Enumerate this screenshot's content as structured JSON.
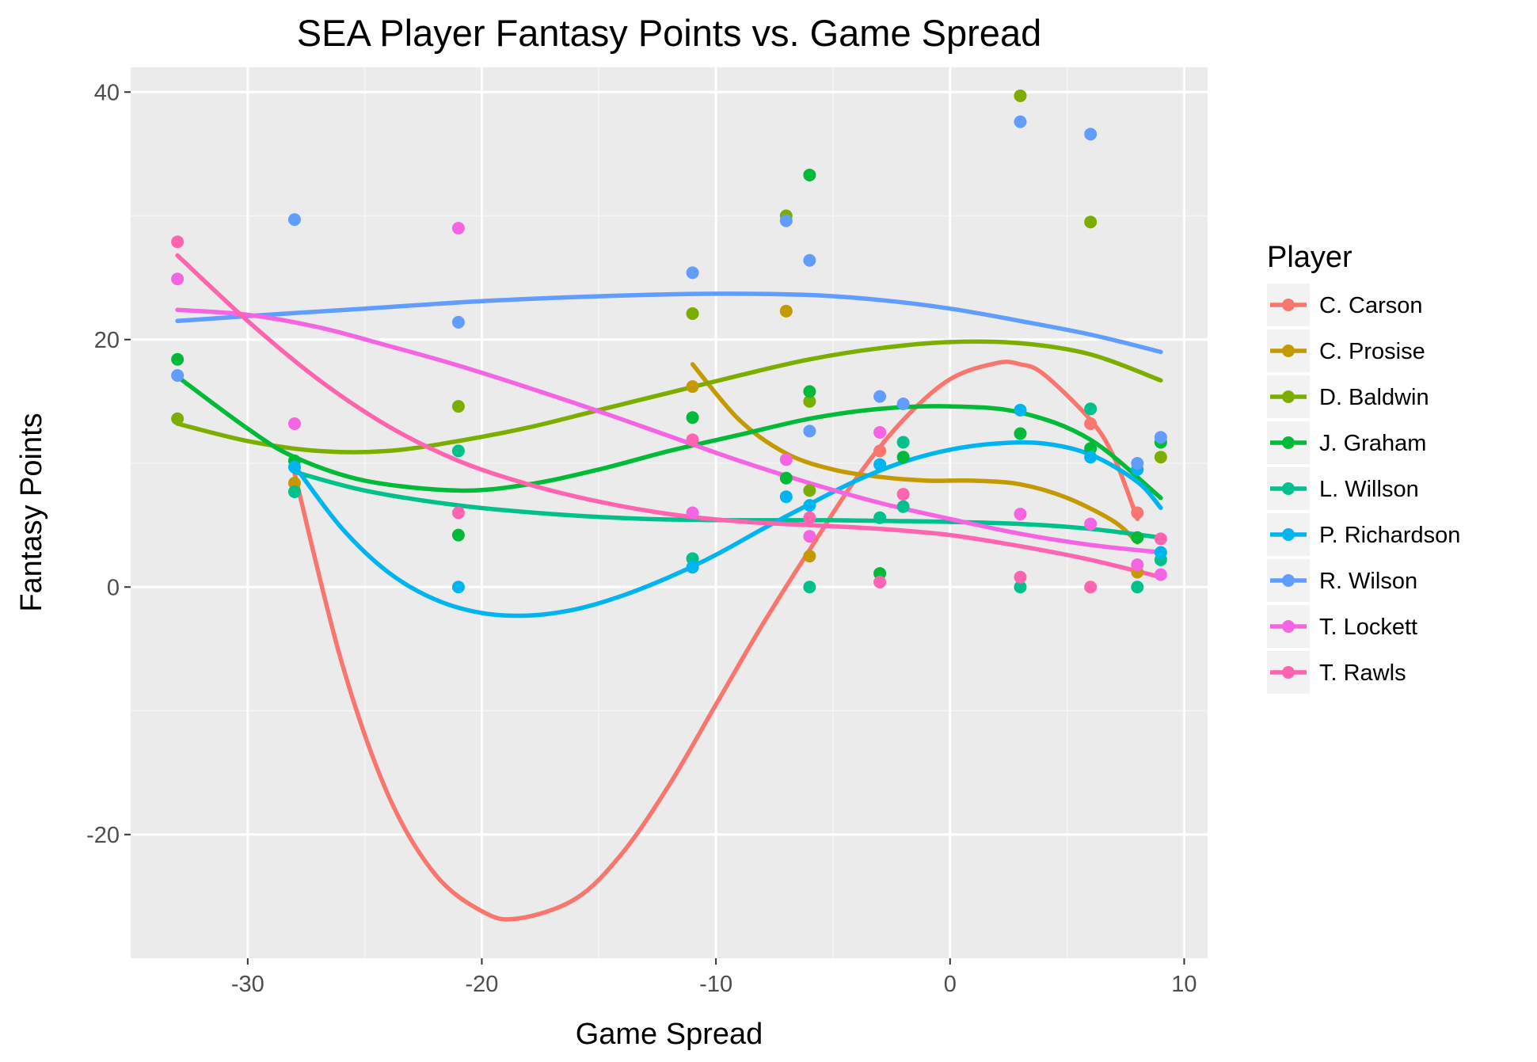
{
  "chart_data": {
    "type": "scatter",
    "title": "SEA Player Fantasy Points vs. Game Spread",
    "xlabel": "Game Spread",
    "ylabel": "Fantasy Points",
    "xlim": [
      -35,
      11
    ],
    "ylim": [
      -30,
      42
    ],
    "x_ticks": [
      -30,
      -20,
      -10,
      0,
      10
    ],
    "y_ticks": [
      -20,
      0,
      20,
      40
    ],
    "x_tick_labels": [
      "-30",
      "-20",
      "-10",
      "0",
      "10"
    ],
    "y_tick_labels": [
      "-20",
      "0",
      "20",
      "40"
    ],
    "grid": true,
    "legend": {
      "title": "Player",
      "position": "right"
    },
    "series": [
      {
        "name": "C. Carson",
        "color": "#F8766D",
        "points": [
          [
            -3,
            11.0
          ],
          [
            6,
            13.2
          ],
          [
            8,
            6.0
          ]
        ],
        "smooth": [
          [
            -28,
            9.2
          ],
          [
            -26,
            -6.0
          ],
          [
            -24,
            -16.8
          ],
          [
            -22,
            -23.2
          ],
          [
            -20,
            -26.2
          ],
          [
            -18.5,
            -26.8
          ],
          [
            -16,
            -25.2
          ],
          [
            -14,
            -21.5
          ],
          [
            -12,
            -16.0
          ],
          [
            -10,
            -9.5
          ],
          [
            -8,
            -3.0
          ],
          [
            -6,
            3.0
          ],
          [
            -4,
            8.8
          ],
          [
            -2,
            13.5
          ],
          [
            0,
            16.8
          ],
          [
            2,
            18.1
          ],
          [
            3,
            18.0
          ],
          [
            4,
            17.2
          ],
          [
            6,
            13.5
          ],
          [
            7,
            10.5
          ],
          [
            8,
            5.5
          ]
        ]
      },
      {
        "name": "C. Prosise",
        "color": "#C49A00",
        "points": [
          [
            -28,
            8.4
          ],
          [
            -11,
            16.2
          ],
          [
            -7,
            22.3
          ],
          [
            -6,
            2.5
          ],
          [
            8,
            1.2
          ]
        ],
        "smooth": [
          [
            -11,
            18.0
          ],
          [
            -9,
            13.5
          ],
          [
            -7,
            10.8
          ],
          [
            -5,
            9.5
          ],
          [
            -3,
            8.9
          ],
          [
            -1,
            8.6
          ],
          [
            1,
            8.6
          ],
          [
            3,
            8.3
          ],
          [
            5,
            7.2
          ],
          [
            7,
            5.3
          ],
          [
            8,
            3.6
          ]
        ]
      },
      {
        "name": "D. Baldwin",
        "color": "#7CAE00",
        "points": [
          [
            -33,
            13.6
          ],
          [
            -21,
            14.6
          ],
          [
            -11,
            22.1
          ],
          [
            -7,
            30.0
          ],
          [
            -6,
            15.0
          ],
          [
            -6,
            7.8
          ],
          [
            3,
            39.7
          ],
          [
            6,
            29.5
          ],
          [
            9,
            10.5
          ]
        ],
        "smooth": [
          [
            -33,
            13.2
          ],
          [
            -30,
            11.8
          ],
          [
            -27,
            11.0
          ],
          [
            -24,
            11.0
          ],
          [
            -21,
            11.8
          ],
          [
            -18,
            12.9
          ],
          [
            -15,
            14.3
          ],
          [
            -12,
            15.7
          ],
          [
            -9,
            17.1
          ],
          [
            -6,
            18.4
          ],
          [
            -3,
            19.3
          ],
          [
            0,
            19.8
          ],
          [
            3,
            19.7
          ],
          [
            6,
            18.8
          ],
          [
            9,
            16.7
          ]
        ]
      },
      {
        "name": "J. Graham",
        "color": "#00BA38",
        "points": [
          [
            -33,
            18.4
          ],
          [
            -28,
            10.2
          ],
          [
            -21,
            4.2
          ],
          [
            -11,
            13.7
          ],
          [
            -7,
            8.8
          ],
          [
            -6,
            33.3
          ],
          [
            -6,
            15.8
          ],
          [
            -3,
            1.1
          ],
          [
            -2,
            10.5
          ],
          [
            3,
            12.4
          ],
          [
            6,
            11.2
          ],
          [
            8,
            4.0
          ],
          [
            9,
            11.7
          ]
        ],
        "smooth": [
          [
            -33,
            17.0
          ],
          [
            -30,
            12.8
          ],
          [
            -28,
            10.5
          ],
          [
            -25,
            8.6
          ],
          [
            -21,
            7.8
          ],
          [
            -18,
            8.3
          ],
          [
            -15,
            9.5
          ],
          [
            -12,
            11.0
          ],
          [
            -9,
            12.3
          ],
          [
            -6,
            13.6
          ],
          [
            -3,
            14.4
          ],
          [
            0,
            14.6
          ],
          [
            3,
            14.1
          ],
          [
            6,
            11.9
          ],
          [
            9,
            7.2
          ]
        ]
      },
      {
        "name": "L. Willson",
        "color": "#00C08B",
        "points": [
          [
            -28,
            7.7
          ],
          [
            -21,
            11.0
          ],
          [
            -11,
            2.3
          ],
          [
            -6,
            0.0
          ],
          [
            -3,
            5.6
          ],
          [
            -2,
            11.7
          ],
          [
            -2,
            6.5
          ],
          [
            3,
            0.0
          ],
          [
            6,
            14.4
          ],
          [
            8,
            0.0
          ],
          [
            9,
            2.2
          ]
        ],
        "smooth": [
          [
            -28,
            9.3
          ],
          [
            -25,
            7.8
          ],
          [
            -21,
            6.6
          ],
          [
            -17,
            5.9
          ],
          [
            -13,
            5.5
          ],
          [
            -9,
            5.4
          ],
          [
            -5,
            5.4
          ],
          [
            -1,
            5.3
          ],
          [
            3,
            5.1
          ],
          [
            6,
            4.7
          ],
          [
            9,
            4.0
          ]
        ]
      },
      {
        "name": "P. Richardson",
        "color": "#00B4EF",
        "points": [
          [
            -28,
            9.7
          ],
          [
            -21,
            0.0
          ],
          [
            -11,
            1.6
          ],
          [
            -7,
            7.3
          ],
          [
            -6,
            6.6
          ],
          [
            -3,
            9.9
          ],
          [
            3,
            14.3
          ],
          [
            6,
            10.5
          ],
          [
            8,
            9.5
          ],
          [
            9,
            2.8
          ]
        ],
        "smooth": [
          [
            -28,
            9.8
          ],
          [
            -26,
            4.8
          ],
          [
            -24,
            1.2
          ],
          [
            -22,
            -1.0
          ],
          [
            -20,
            -2.1
          ],
          [
            -18,
            -2.3
          ],
          [
            -16,
            -1.8
          ],
          [
            -14,
            -0.7
          ],
          [
            -12,
            0.8
          ],
          [
            -10,
            2.6
          ],
          [
            -8,
            4.7
          ],
          [
            -6,
            6.7
          ],
          [
            -4,
            8.6
          ],
          [
            -2,
            10.1
          ],
          [
            0,
            11.1
          ],
          [
            2,
            11.6
          ],
          [
            4,
            11.6
          ],
          [
            6,
            10.7
          ],
          [
            8,
            8.5
          ],
          [
            9,
            6.4
          ]
        ]
      },
      {
        "name": "R. Wilson",
        "color": "#619CFF",
        "points": [
          [
            -33,
            17.1
          ],
          [
            -28,
            29.7
          ],
          [
            -21,
            21.4
          ],
          [
            -11,
            25.4
          ],
          [
            -7,
            29.6
          ],
          [
            -6,
            26.4
          ],
          [
            -6,
            12.6
          ],
          [
            -3,
            15.4
          ],
          [
            -2,
            14.8
          ],
          [
            3,
            37.6
          ],
          [
            6,
            36.6
          ],
          [
            8,
            10.0
          ],
          [
            9,
            12.1
          ]
        ],
        "smooth": [
          [
            -33,
            21.5
          ],
          [
            -30,
            21.9
          ],
          [
            -25,
            22.5
          ],
          [
            -20,
            23.1
          ],
          [
            -15,
            23.5
          ],
          [
            -10,
            23.7
          ],
          [
            -6,
            23.6
          ],
          [
            -3,
            23.2
          ],
          [
            0,
            22.5
          ],
          [
            3,
            21.5
          ],
          [
            6,
            20.4
          ],
          [
            9,
            19.0
          ]
        ]
      },
      {
        "name": "T. Lockett",
        "color": "#F564E3",
        "points": [
          [
            -33,
            24.9
          ],
          [
            -28,
            13.2
          ],
          [
            -21,
            29.0
          ],
          [
            -11,
            6.0
          ],
          [
            -7,
            10.3
          ],
          [
            -6,
            4.1
          ],
          [
            -3,
            12.5
          ],
          [
            3,
            5.9
          ],
          [
            6,
            5.1
          ],
          [
            8,
            1.8
          ],
          [
            9,
            1.0
          ]
        ],
        "smooth": [
          [
            -33,
            22.4
          ],
          [
            -30,
            22.0
          ],
          [
            -27,
            21.0
          ],
          [
            -24,
            19.5
          ],
          [
            -21,
            17.9
          ],
          [
            -18,
            16.1
          ],
          [
            -15,
            14.2
          ],
          [
            -12,
            12.2
          ],
          [
            -9,
            10.2
          ],
          [
            -6,
            8.4
          ],
          [
            -3,
            6.8
          ],
          [
            0,
            5.5
          ],
          [
            3,
            4.3
          ],
          [
            6,
            3.4
          ],
          [
            9,
            2.8
          ]
        ]
      },
      {
        "name": "T. Rawls",
        "color": "#FF64B0",
        "points": [
          [
            -33,
            27.9
          ],
          [
            -21,
            6.0
          ],
          [
            -11,
            11.9
          ],
          [
            -6,
            5.6
          ],
          [
            -3,
            0.4
          ],
          [
            -2,
            7.5
          ],
          [
            3,
            0.8
          ],
          [
            6,
            0.0
          ],
          [
            9,
            3.9
          ]
        ],
        "smooth": [
          [
            -33,
            26.8
          ],
          [
            -30,
            21.5
          ],
          [
            -27,
            16.8
          ],
          [
            -24,
            13.0
          ],
          [
            -21,
            10.2
          ],
          [
            -18,
            8.3
          ],
          [
            -15,
            6.9
          ],
          [
            -12,
            5.9
          ],
          [
            -9,
            5.3
          ],
          [
            -6,
            5.0
          ],
          [
            -3,
            4.7
          ],
          [
            0,
            4.2
          ],
          [
            3,
            3.3
          ],
          [
            6,
            2.2
          ],
          [
            9,
            0.8
          ]
        ]
      }
    ]
  }
}
